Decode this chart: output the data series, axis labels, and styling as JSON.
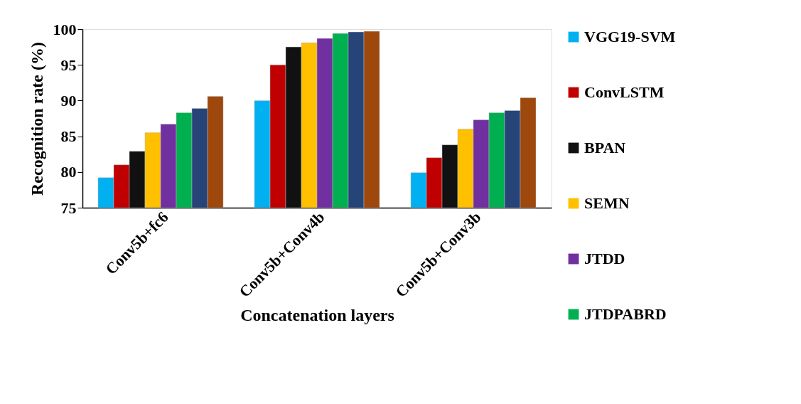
{
  "chart_data": {
    "type": "bar",
    "xlabel": "Concatenation layers",
    "ylabel": "Recognition rate (%)",
    "categories": [
      "Conv5b+fc6",
      "Conv5b+Conv4b",
      "Conv5b+Conv3b"
    ],
    "series": [
      {
        "name": "VGG19-SVM",
        "color": "#00b0f0",
        "values": [
          79.2,
          90.0,
          79.9
        ]
      },
      {
        "name": "ConvLSTM",
        "color": "#c00000",
        "values": [
          81.0,
          95.0,
          82.0
        ]
      },
      {
        "name": "BPAN",
        "color": "#111111",
        "values": [
          82.9,
          97.5,
          83.8
        ]
      },
      {
        "name": "SEMN",
        "color": "#ffc000",
        "values": [
          85.5,
          98.1,
          86.0
        ]
      },
      {
        "name": "JTDD",
        "color": "#7030a0",
        "values": [
          86.7,
          98.7,
          87.3
        ]
      },
      {
        "name": "JTDPABRD",
        "color": "#00b050",
        "values": [
          88.3,
          99.4,
          88.3
        ]
      },
      {
        "color": "#264478",
        "values": [
          88.9,
          99.6,
          88.6
        ]
      },
      {
        "color": "#9e480e",
        "values": [
          90.6,
          99.7,
          90.4
        ]
      }
    ],
    "ylim": [
      75,
      100
    ],
    "yticks": [
      75,
      80,
      85,
      90,
      95,
      100
    ],
    "grid": false,
    "legend": "right"
  }
}
